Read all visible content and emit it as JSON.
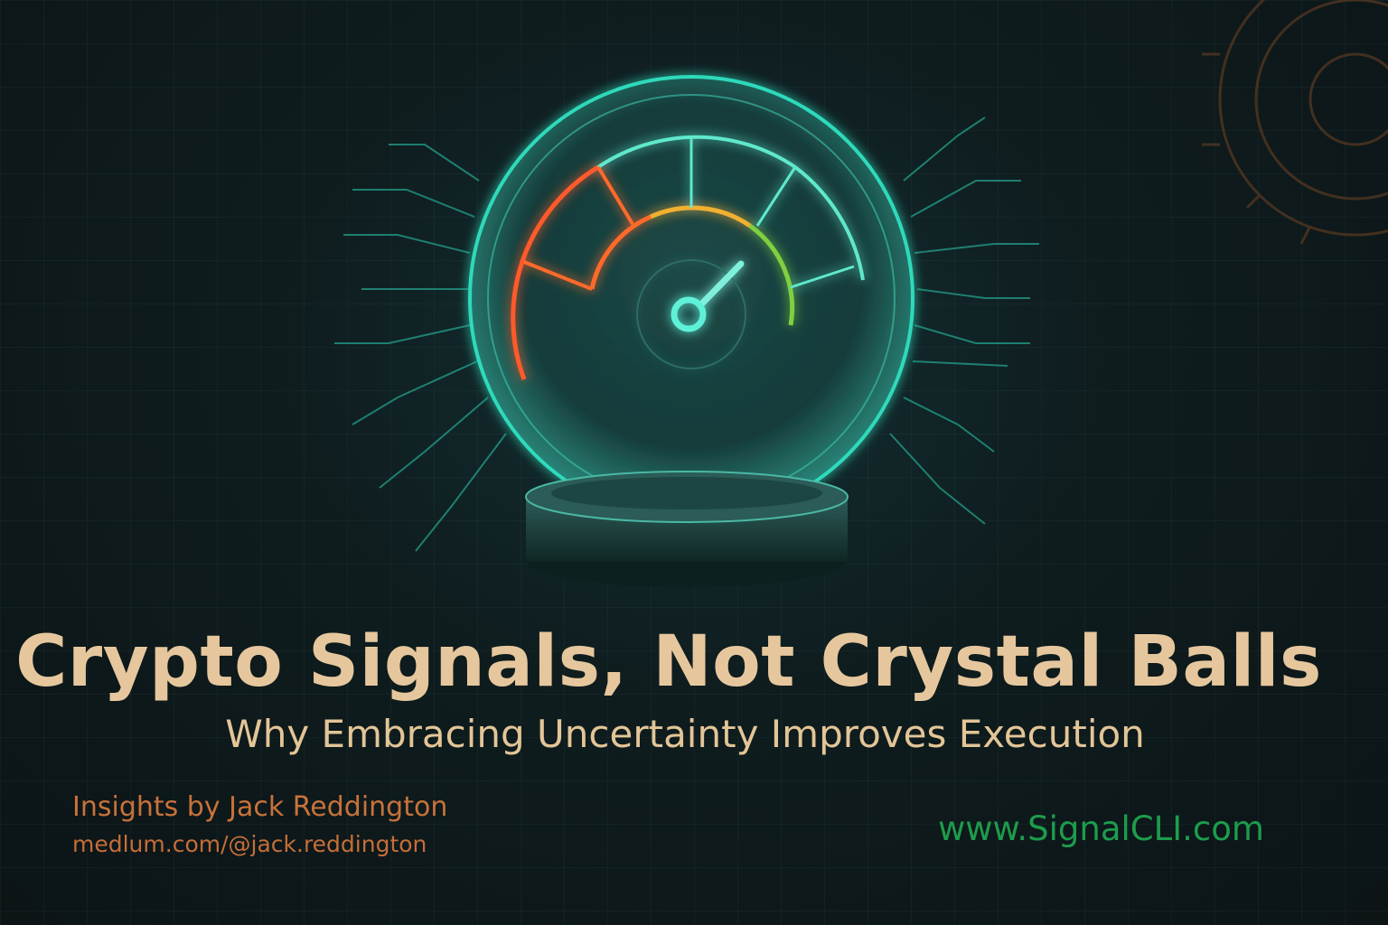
{
  "title": "Crypto Signals, Not Crystal Balls",
  "subtitle": "Why Embracing Uncertainty Improves Execution",
  "author_line": "Insights by Jack Reddington",
  "author_handle": "medlum.com/@jack.reddington",
  "website": "www.SignalCLI.com",
  "colors": {
    "background": "#0e1719",
    "title": "#e6c79d",
    "author": "#c8723a",
    "website": "#1d9c4c",
    "glow": "#2fe0c0",
    "gauge_red": "#ff5a2a",
    "gauge_yellow": "#f0b030",
    "gauge_green": "#7fd040"
  },
  "illustration": {
    "subject": "crystal-ball-speedometer",
    "needle_level": 0.72
  }
}
